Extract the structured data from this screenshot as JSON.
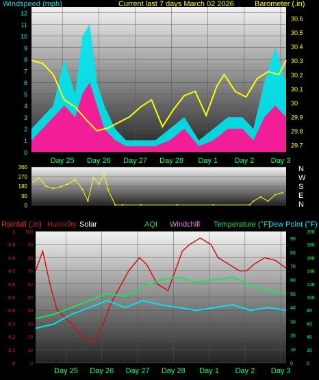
{
  "colors": {
    "wind": "#00e5ee",
    "gust": "#ff1493",
    "pressure": "#ffff00",
    "direction": "#ffff00",
    "rain": "#ff2020",
    "humidity": "#d01010",
    "solar": "#ffffff",
    "aqi": "#ffffff",
    "windchill": "#ee82ee",
    "temperature": "#20e060",
    "dewpoint": "#00e5ee",
    "axis_green": "#00ff80",
    "axis_red": "#ff2020",
    "axis_cyan": "#00e5ee"
  },
  "chart_data": [
    {
      "type": "area",
      "title": "Current last 7 days March 02 2026",
      "left_label": "Windspeed (mph)",
      "right_label": "Barometer (.in)",
      "x_ticks": [
        "Day 25",
        "Day 26",
        "Day 27",
        "Day 28",
        "Day 1",
        "Day 2",
        "Day 3"
      ],
      "y_left_ticks": [
        "0",
        "1",
        "2",
        "3",
        "4",
        "5",
        "6",
        "7",
        "8",
        "9",
        "10",
        "11",
        "12"
      ],
      "y_right_ticks": [
        "29.7",
        "29.8",
        "29.9",
        "30",
        "30.1",
        "30.2",
        "30.3",
        "30.4",
        "30.5",
        "30.6"
      ],
      "ylim_left": [
        0,
        12.5
      ],
      "ylim_right": [
        29.65,
        30.68
      ],
      "x_days": [
        0,
        7
      ],
      "series": [
        {
          "name": "Windspeed (mph)",
          "axis": "left",
          "x": [
            0,
            0.3,
            0.6,
            0.9,
            1.2,
            1.4,
            1.6,
            1.8,
            2.0,
            2.3,
            2.6,
            3.0,
            3.4,
            3.8,
            4.2,
            4.6,
            5.0,
            5.4,
            5.8,
            6.1,
            6.4,
            6.7,
            7.0
          ],
          "values": [
            2,
            3,
            4,
            8,
            5,
            10,
            11,
            6,
            4,
            2,
            1,
            1,
            1,
            2,
            3,
            1,
            2,
            3,
            3,
            2,
            6,
            9,
            6
          ]
        },
        {
          "name": "Gust (mph)",
          "axis": "left",
          "x": [
            0,
            0.3,
            0.6,
            0.9,
            1.2,
            1.4,
            1.6,
            1.8,
            2.0,
            2.3,
            2.6,
            3.0,
            3.4,
            3.8,
            4.2,
            4.6,
            5.0,
            5.4,
            5.8,
            6.1,
            6.4,
            6.7,
            7.0
          ],
          "values": [
            1,
            2,
            3,
            4,
            3,
            5,
            6,
            4,
            2,
            1,
            0.5,
            0.5,
            0.5,
            1,
            2,
            0.5,
            1,
            2,
            2,
            1,
            3,
            4,
            3
          ]
        },
        {
          "name": "Barometer (.in)",
          "axis": "right",
          "x": [
            0,
            0.3,
            0.6,
            0.9,
            1.2,
            1.5,
            1.8,
            2.1,
            2.4,
            2.7,
            3.0,
            3.3,
            3.6,
            3.9,
            4.2,
            4.5,
            4.8,
            5.1,
            5.3,
            5.6,
            5.9,
            6.2,
            6.5,
            6.8,
            7.0
          ],
          "values": [
            30.3,
            30.28,
            30.2,
            30.02,
            29.97,
            29.88,
            29.8,
            29.82,
            29.86,
            29.9,
            29.97,
            30.02,
            29.83,
            29.95,
            30.05,
            30.08,
            29.91,
            30.12,
            30.2,
            30.08,
            30.04,
            30.17,
            30.22,
            30.2,
            30.3
          ]
        }
      ]
    },
    {
      "type": "scatter",
      "y_ticks": [
        "360",
        "270",
        "180",
        "90",
        "0"
      ],
      "compass": [
        "N",
        "W",
        "S",
        "E",
        "N"
      ],
      "x_ticks": [
        "Day 25",
        "Day 26",
        "Day 27",
        "Day 28",
        "Day 1",
        "Day 2",
        "Day 3"
      ],
      "ylim": [
        0,
        360
      ],
      "series": [
        {
          "name": "Wind direction",
          "x": [
            0.05,
            0.2,
            0.4,
            0.6,
            0.8,
            1.0,
            1.2,
            1.4,
            1.55,
            1.7,
            1.85,
            2.0,
            2.1,
            2.3,
            2.5,
            3.0,
            4.0,
            5.0,
            6.0,
            6.1,
            6.3,
            6.5,
            6.7,
            6.9
          ],
          "values": [
            220,
            260,
            180,
            160,
            175,
            200,
            240,
            150,
            40,
            260,
            200,
            300,
            150,
            5,
            5,
            5,
            5,
            5,
            5,
            40,
            80,
            40,
            100,
            120
          ]
        }
      ]
    },
    {
      "type": "line",
      "labels": [
        "Rainfall (.in)",
        "Humidity",
        "Solar",
        "AQI",
        "Windchill",
        "Temperature (°F)",
        "Dew Point (°F)"
      ],
      "x_ticks": [
        "Day 25",
        "Day 26",
        "Day 27",
        "Day 28",
        "Day 1",
        "Day 2",
        "Day 3"
      ],
      "y_rain_ticks": [
        "0",
        "0.1",
        "0.2",
        "0.3",
        "0.4",
        "0.5",
        "0.6",
        "0.7",
        "0.8",
        "0.9",
        "1"
      ],
      "y_pct_ticks": [
        "0",
        "10",
        "20",
        "30",
        "40",
        "50",
        "60",
        "70",
        "80",
        "90",
        "100"
      ],
      "y_temp_ticks": [
        "0",
        "10",
        "20",
        "30",
        "40",
        "50",
        "60",
        "70",
        "80",
        "90"
      ],
      "y_solar_ticks": [
        "0",
        "20",
        "40",
        "60",
        "80",
        "100",
        "120",
        "140",
        "160",
        "180",
        "200"
      ],
      "series": [
        {
          "name": "Humidity",
          "x": [
            0,
            0.2,
            0.4,
            0.6,
            0.8,
            1.0,
            1.3,
            1.6,
            1.9,
            2.1,
            2.3,
            2.6,
            2.9,
            3.1,
            3.4,
            3.7,
            3.9,
            4.1,
            4.3,
            4.6,
            4.9,
            5.1,
            5.4,
            5.7,
            5.9,
            6.1,
            6.4,
            6.7,
            7.0
          ],
          "values": [
            70,
            85,
            60,
            40,
            35,
            30,
            20,
            15,
            30,
            45,
            55,
            70,
            80,
            75,
            60,
            55,
            70,
            85,
            90,
            95,
            90,
            80,
            75,
            70,
            70,
            75,
            80,
            78,
            72
          ]
        },
        {
          "name": "Temperature (°F)",
          "x": [
            0,
            0.5,
            1.0,
            1.5,
            2.0,
            2.5,
            3.0,
            3.5,
            4.0,
            4.5,
            5.0,
            5.5,
            6.0,
            6.5,
            7.0
          ],
          "values": [
            32,
            35,
            40,
            45,
            50,
            48,
            55,
            60,
            62,
            58,
            60,
            62,
            56,
            52,
            50
          ]
        },
        {
          "name": "Dew Point (°F)",
          "x": [
            0,
            0.5,
            1.0,
            1.5,
            2.0,
            2.5,
            3.0,
            3.5,
            4.0,
            4.5,
            5.0,
            5.5,
            6.0,
            6.5,
            7.0
          ],
          "values": [
            25,
            28,
            35,
            40,
            45,
            40,
            45,
            42,
            40,
            38,
            40,
            42,
            38,
            40,
            38
          ]
        }
      ]
    }
  ]
}
